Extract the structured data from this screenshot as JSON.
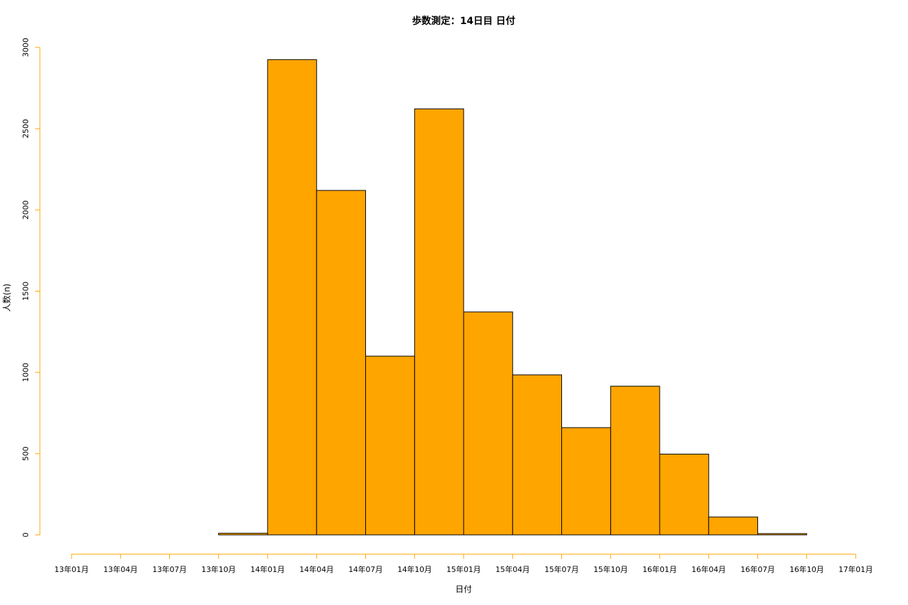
{
  "chart_data": {
    "type": "bar",
    "title": "歩数測定：14日目 日付",
    "xlabel": "日付",
    "ylabel": "人数(n)",
    "categories": [
      "13年01月",
      "13年04月",
      "13年07月",
      "13年10月",
      "14年01月",
      "14年04月",
      "14年07月",
      "14年10月",
      "15年01月",
      "15年04月",
      "15年07月",
      "15年10月",
      "16年01月",
      "16年04月",
      "16年07月",
      "16年10月"
    ],
    "x_ticks": [
      "13年01月",
      "13年04月",
      "13年07月",
      "13年10月",
      "14年01月",
      "14年04月",
      "14年07月",
      "14年10月",
      "15年01月",
      "15年04月",
      "15年07月",
      "15年10月",
      "16年01月",
      "16年04月",
      "16年07月",
      "16年10月",
      "17年01月"
    ],
    "values": [
      0,
      0,
      0,
      10,
      2925,
      2120,
      1100,
      2622,
      1372,
      985,
      660,
      915,
      497,
      110,
      8,
      0
    ],
    "ylim": [
      0,
      3000
    ],
    "y_ticks": [
      0,
      500,
      1000,
      1500,
      2000,
      2500,
      3000
    ],
    "grid": false,
    "bar_color": "#FFA500",
    "axis_color": "#FFA500"
  }
}
